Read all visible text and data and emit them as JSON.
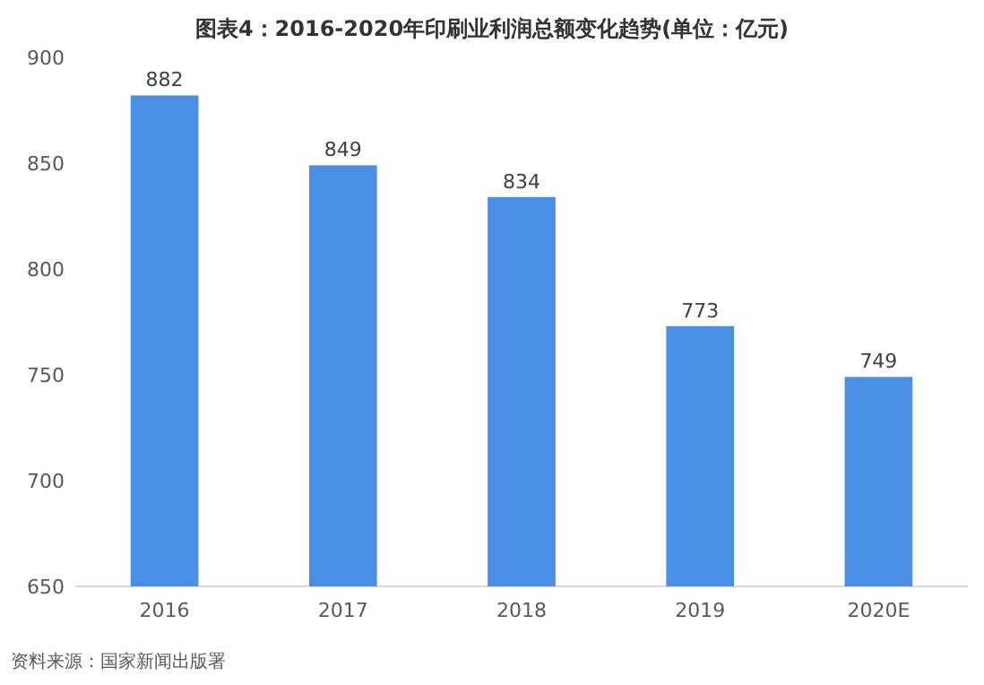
{
  "chart_data": {
    "type": "bar",
    "title": "图表4：2016-2020年印刷业利润总额变化趋势(单位：亿元)",
    "categories": [
      "2016",
      "2017",
      "2018",
      "2019",
      "2020E"
    ],
    "values": [
      882,
      849,
      834,
      773,
      749
    ],
    "color": "#4a8fe6",
    "ylim": [
      650,
      900
    ],
    "yticks": [
      650,
      700,
      750,
      800,
      850,
      900
    ],
    "grid": false,
    "data_labels": true,
    "annotations": [
      "资料来源：国家新闻出版署"
    ]
  }
}
